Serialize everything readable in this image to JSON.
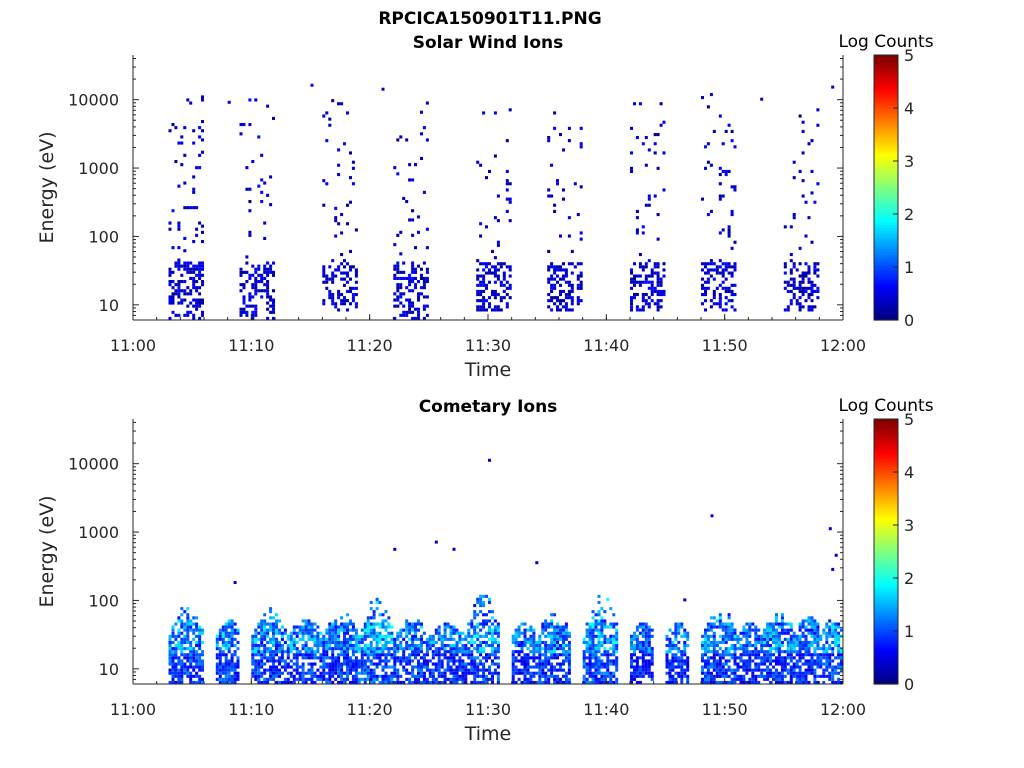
{
  "figure": {
    "suptitle": "RPCICA150901T11.PNG"
  },
  "chart_data": [
    {
      "type": "heatmap",
      "title": "Solar Wind Ions",
      "xlabel": "Time",
      "ylabel": "Energy (eV)",
      "yscale": "log",
      "xlim": [
        "11:00",
        "12:00"
      ],
      "ylim": [
        6,
        45000
      ],
      "x_ticks": [
        "11:00",
        "11:10",
        "11:20",
        "11:30",
        "11:40",
        "11:50",
        "12:00"
      ],
      "y_ticks": [
        "10",
        "100",
        "1000",
        "10000"
      ],
      "colorbar": {
        "label": "Log Counts",
        "min": 0,
        "max": 5,
        "ticks": [
          "0",
          "1",
          "2",
          "3",
          "4",
          "5"
        ],
        "colormap": "jet"
      },
      "bursts": [
        {
          "start": "11:03",
          "end": "11:06",
          "energy_range": [
            6,
            11000
          ],
          "max_log_counts": 0.6
        },
        {
          "start": "11:09",
          "end": "11:12",
          "energy_range": [
            6,
            10000
          ],
          "max_log_counts": 0.6
        },
        {
          "start": "11:16",
          "end": "11:19",
          "energy_range": [
            8,
            10000
          ],
          "max_log_counts": 0.6
        },
        {
          "start": "11:22",
          "end": "11:25",
          "energy_range": [
            6,
            9500
          ],
          "max_log_counts": 0.6
        },
        {
          "start": "11:29",
          "end": "11:32",
          "energy_range": [
            8,
            7500
          ],
          "max_log_counts": 0.6
        },
        {
          "start": "11:35",
          "end": "11:38",
          "energy_range": [
            8,
            7500
          ],
          "max_log_counts": 0.6
        },
        {
          "start": "11:42",
          "end": "11:45",
          "energy_range": [
            8,
            9000
          ],
          "max_log_counts": 0.6
        },
        {
          "start": "11:48",
          "end": "11:51",
          "energy_range": [
            8,
            12000
          ],
          "max_log_counts": 0.6
        },
        {
          "start": "11:55",
          "end": "11:58",
          "energy_range": [
            8,
            10000
          ],
          "max_log_counts": 0.6
        }
      ],
      "isolated_points": [
        {
          "t": "11:15",
          "e": 16000
        },
        {
          "t": "11:21",
          "e": 14000
        },
        {
          "t": "11:59",
          "e": 15000
        },
        {
          "t": "11:08",
          "e": 9000
        },
        {
          "t": "11:53",
          "e": 10000
        }
      ]
    },
    {
      "type": "heatmap",
      "title": "Cometary Ions",
      "xlabel": "Time",
      "ylabel": "Energy (eV)",
      "yscale": "log",
      "xlim": [
        "11:00",
        "12:00"
      ],
      "ylim": [
        6,
        45000
      ],
      "x_ticks": [
        "11:00",
        "11:10",
        "11:20",
        "11:30",
        "11:40",
        "11:50",
        "12:00"
      ],
      "y_ticks": [
        "10",
        "100",
        "1000",
        "10000"
      ],
      "colorbar": {
        "label": "Log Counts",
        "min": 0,
        "max": 5,
        "ticks": [
          "0",
          "1",
          "2",
          "3",
          "4",
          "5"
        ],
        "colormap": "jet"
      },
      "bursts": [
        {
          "start": "11:03",
          "end": "11:06",
          "energy_range": [
            6,
            120
          ],
          "max_log_counts": 1.9
        },
        {
          "start": "11:07",
          "end": "11:09",
          "energy_range": [
            6,
            60
          ],
          "max_log_counts": 1.9
        },
        {
          "start": "11:10",
          "end": "11:13",
          "energy_range": [
            6,
            90
          ],
          "max_log_counts": 1.8
        },
        {
          "start": "11:13",
          "end": "11:16",
          "energy_range": [
            6,
            60
          ],
          "max_log_counts": 1.8
        },
        {
          "start": "11:16",
          "end": "11:19",
          "energy_range": [
            6,
            80
          ],
          "max_log_counts": 1.8
        },
        {
          "start": "11:19",
          "end": "11:22",
          "energy_range": [
            6,
            150
          ],
          "max_log_counts": 2.0
        },
        {
          "start": "11:22",
          "end": "11:25",
          "energy_range": [
            6,
            60
          ],
          "max_log_counts": 1.8
        },
        {
          "start": "11:25",
          "end": "11:28",
          "energy_range": [
            6,
            50
          ],
          "max_log_counts": 1.7
        },
        {
          "start": "11:28",
          "end": "11:31",
          "energy_range": [
            6,
            180
          ],
          "max_log_counts": 1.9
        },
        {
          "start": "11:32",
          "end": "11:34",
          "energy_range": [
            6,
            50
          ],
          "max_log_counts": 1.7
        },
        {
          "start": "11:34",
          "end": "11:37",
          "energy_range": [
            6,
            80
          ],
          "max_log_counts": 1.8
        },
        {
          "start": "11:38",
          "end": "11:41",
          "energy_range": [
            6,
            180
          ],
          "max_log_counts": 2.0
        },
        {
          "start": "11:42",
          "end": "11:44",
          "energy_range": [
            6,
            50
          ],
          "max_log_counts": 1.6
        },
        {
          "start": "11:45",
          "end": "11:47",
          "energy_range": [
            6,
            50
          ],
          "max_log_counts": 1.7
        },
        {
          "start": "11:48",
          "end": "11:51",
          "energy_range": [
            6,
            100
          ],
          "max_log_counts": 1.9
        },
        {
          "start": "11:51",
          "end": "11:53",
          "energy_range": [
            6,
            50
          ],
          "max_log_counts": 1.6
        },
        {
          "start": "11:53",
          "end": "11:56",
          "energy_range": [
            6,
            80
          ],
          "max_log_counts": 1.8
        },
        {
          "start": "11:56",
          "end": "11:58",
          "energy_range": [
            6,
            100
          ],
          "max_log_counts": 1.7
        },
        {
          "start": "11:58",
          "end": "12:00",
          "energy_range": [
            6,
            60
          ],
          "max_log_counts": 1.9
        }
      ],
      "isolated_points": [
        {
          "t": "11:30",
          "e": 11000
        },
        {
          "t": "11:22",
          "e": 550
        },
        {
          "t": "11:25.5",
          "e": 700
        },
        {
          "t": "11:27",
          "e": 550
        },
        {
          "t": "11:34",
          "e": 350
        },
        {
          "t": "11:48.8",
          "e": 1700
        },
        {
          "t": "11:58.8",
          "e": 1100
        },
        {
          "t": "11:59.3",
          "e": 450
        },
        {
          "t": "11:59",
          "e": 280
        },
        {
          "t": "11:08.5",
          "e": 180
        },
        {
          "t": "11:46.5",
          "e": 100
        }
      ]
    }
  ]
}
